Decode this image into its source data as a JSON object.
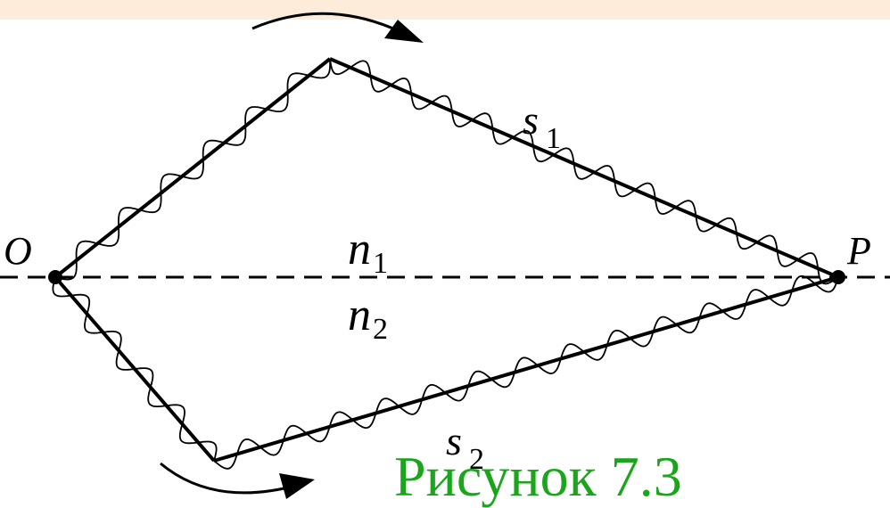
{
  "points": {
    "origin": "O",
    "end": "P"
  },
  "paths": {
    "upper": {
      "label": "s",
      "subscript": "1"
    },
    "lower": {
      "label": "s",
      "subscript": "2"
    }
  },
  "media": {
    "upper": {
      "label": "n",
      "subscript": "1"
    },
    "lower": {
      "label": "n",
      "subscript": "2"
    }
  },
  "caption": "Рисунок 7.3",
  "colors": {
    "background_band": "#fcecd9",
    "caption": "#1aa61a",
    "lines": "#000000"
  }
}
